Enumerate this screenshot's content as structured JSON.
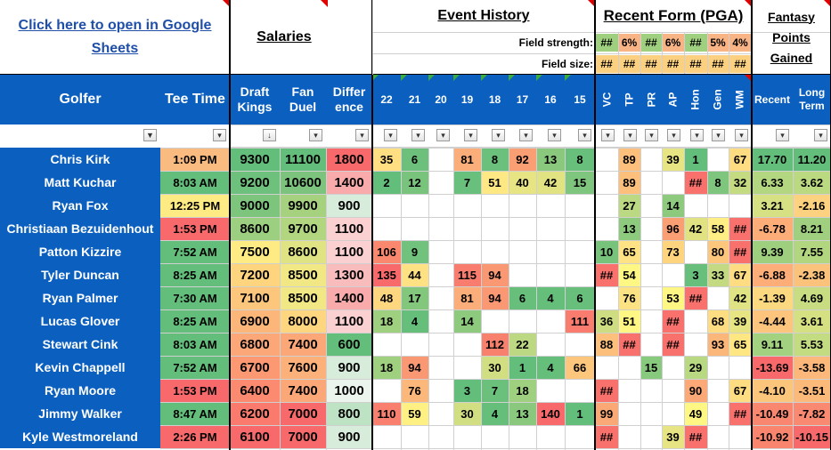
{
  "link": {
    "text": "Click here to open in Google Sheets"
  },
  "sections": {
    "salaries": "Salaries",
    "event_history": "Event History",
    "recent_form": "Recent Form (PGA)",
    "fantasy_points": "Fantasy Points Gained"
  },
  "field_rows": {
    "strength_label": "Field strength:",
    "size_label": "Field size:",
    "strength_values": [
      "##",
      "6%",
      "##",
      "6%",
      "##",
      "5%",
      "4%"
    ],
    "size_values": [
      "##",
      "##",
      "##",
      "##",
      "##",
      "##",
      "##"
    ]
  },
  "columns": {
    "golfer": "Golfer",
    "tee_time": "Tee Time",
    "draftkings": "Draft Kings",
    "fanduel": "Fan Duel",
    "difference": "Differ ence",
    "events": [
      "22",
      "21",
      "20",
      "19",
      "18",
      "17",
      "16",
      "15"
    ],
    "form": [
      "VC",
      "TP",
      "PR",
      "AP",
      "Hon",
      "Gen",
      "WM"
    ],
    "recent": "Recent",
    "long_term": "Long Term"
  },
  "filter_icons": [
    "filter-active-icon",
    "dropdown-icon",
    "sort-descending-icon"
  ],
  "colors": {
    "header_blue": "#0a5fbf",
    "green": "#63be7b",
    "yellow": "#ffeb84",
    "red": "#f8696b",
    "tick_red": "#e00000",
    "tick_green": "#3cab3c"
  },
  "golfers": [
    {
      "name": "Chris Kirk",
      "tee": "1:09 PM",
      "dk": "9300",
      "fd": "11100",
      "diff": "1800",
      "events": [
        "35",
        "6",
        "",
        "81",
        "8",
        "92",
        "13",
        "8"
      ],
      "form": [
        "",
        "89",
        "",
        "39",
        "1",
        "",
        "67"
      ],
      "recent": "17.70",
      "long": "11.20"
    },
    {
      "name": "Matt Kuchar",
      "tee": "8:03 AM",
      "dk": "9200",
      "fd": "10600",
      "diff": "1400",
      "events": [
        "2",
        "12",
        "",
        "7",
        "51",
        "40",
        "42",
        "15"
      ],
      "form": [
        "",
        "89",
        "",
        "",
        "##",
        "8",
        "32"
      ],
      "recent": "6.33",
      "long": "3.62"
    },
    {
      "name": "Ryan Fox",
      "tee": "12:25 PM",
      "dk": "9000",
      "fd": "9900",
      "diff": "900",
      "events": [
        "",
        "",
        "",
        "",
        "",
        "",
        "",
        ""
      ],
      "form": [
        "",
        "27",
        "",
        "14",
        "",
        "",
        ""
      ],
      "recent": "3.21",
      "long": "-2.16"
    },
    {
      "name": "Christiaan Bezuidenhout",
      "tee": "1:53 PM",
      "dk": "8600",
      "fd": "9700",
      "diff": "1100",
      "events": [
        "",
        "",
        "",
        "",
        "",
        "",
        "",
        ""
      ],
      "form": [
        "",
        "13",
        "",
        "96",
        "42",
        "58",
        "##"
      ],
      "recent": "-6.78",
      "long": "8.21"
    },
    {
      "name": "Patton Kizzire",
      "tee": "7:52 AM",
      "dk": "7500",
      "fd": "8600",
      "diff": "1100",
      "events": [
        "106",
        "9",
        "",
        "",
        "",
        "",
        "",
        ""
      ],
      "form": [
        "10",
        "65",
        "",
        "73",
        "",
        "80",
        "##"
      ],
      "recent": "9.39",
      "long": "7.55"
    },
    {
      "name": "Tyler Duncan",
      "tee": "8:25 AM",
      "dk": "7200",
      "fd": "8500",
      "diff": "1300",
      "events": [
        "135",
        "44",
        "",
        "115",
        "94",
        "",
        "",
        ""
      ],
      "form": [
        "##",
        "54",
        "",
        "",
        "3",
        "33",
        "67"
      ],
      "recent": "-6.88",
      "long": "-2.38"
    },
    {
      "name": "Ryan Palmer",
      "tee": "7:30 AM",
      "dk": "7100",
      "fd": "8500",
      "diff": "1400",
      "events": [
        "48",
        "17",
        "",
        "81",
        "94",
        "6",
        "4",
        "6"
      ],
      "form": [
        "",
        "76",
        "",
        "53",
        "##",
        "",
        "42"
      ],
      "recent": "-1.39",
      "long": "4.69"
    },
    {
      "name": "Lucas Glover",
      "tee": "8:25 AM",
      "dk": "6900",
      "fd": "8000",
      "diff": "1100",
      "events": [
        "18",
        "4",
        "",
        "14",
        "",
        "",
        "",
        "111"
      ],
      "form": [
        "36",
        "51",
        "",
        "##",
        "",
        "68",
        "39"
      ],
      "recent": "-4.44",
      "long": "3.61"
    },
    {
      "name": "Stewart Cink",
      "tee": "8:03 AM",
      "dk": "6800",
      "fd": "7400",
      "diff": "600",
      "events": [
        "",
        "",
        "",
        "",
        "112",
        "22",
        "",
        ""
      ],
      "form": [
        "88",
        "##",
        "",
        "##",
        "",
        "93",
        "65"
      ],
      "recent": "9.11",
      "long": "5.53"
    },
    {
      "name": "Kevin Chappell",
      "tee": "7:52 AM",
      "dk": "6700",
      "fd": "7600",
      "diff": "900",
      "events": [
        "18",
        "94",
        "",
        "",
        "30",
        "1",
        "4",
        "66"
      ],
      "form": [
        "",
        "",
        "15",
        "",
        "29",
        "",
        ""
      ],
      "recent": "-13.69",
      "long": "-3.58"
    },
    {
      "name": "Ryan Moore",
      "tee": "1:53 PM",
      "dk": "6400",
      "fd": "7400",
      "diff": "1000",
      "events": [
        "",
        "76",
        "",
        "3",
        "7",
        "18",
        "",
        ""
      ],
      "form": [
        "##",
        "",
        "",
        "",
        "90",
        "",
        "67"
      ],
      "recent": "-4.10",
      "long": "-3.51"
    },
    {
      "name": "Jimmy Walker",
      "tee": "8:47 AM",
      "dk": "6200",
      "fd": "7000",
      "diff": "800",
      "events": [
        "110",
        "59",
        "",
        "30",
        "4",
        "13",
        "140",
        "1"
      ],
      "form": [
        "99",
        "",
        "",
        "",
        "49",
        "",
        "##"
      ],
      "recent": "-10.49",
      "long": "-7.82"
    },
    {
      "name": "Kyle Westmoreland",
      "tee": "2:26 PM",
      "dk": "6100",
      "fd": "7000",
      "diff": "900",
      "events": [
        "",
        "",
        "",
        "",
        "",
        "",
        "",
        ""
      ],
      "form": [
        "##",
        "",
        "",
        "39",
        "##",
        "",
        ""
      ],
      "recent": "-10.92",
      "long": "-10.15"
    }
  ],
  "cell_fills": {
    "tee": [
      "#f9bb7f",
      "#63be7b",
      "#ffeb84",
      "#f8696b",
      "#63be7b",
      "#63be7b",
      "#63be7b",
      "#63be7b",
      "#63be7b",
      "#63be7b",
      "#f8696b",
      "#63be7b",
      "#f8696b"
    ],
    "dk": [
      "#63be7b",
      "#6ec17c",
      "#7dc57d",
      "#9ccf7f",
      "#ffeb84",
      "#fed47f",
      "#fdc67d",
      "#fdb67a",
      "#fca777",
      "#fc9973",
      "#fb8a70",
      "#fa7b6e",
      "#f8696b"
    ],
    "fd": [
      "#63be7b",
      "#7cc47d",
      "#a6d280",
      "#b2d680",
      "#e0e383",
      "#f1e784",
      "#f1e784",
      "#fed680",
      "#fca777",
      "#fcb07a",
      "#fca777",
      "#f8696b",
      "#f8696b"
    ],
    "diff": [
      "#f8696b",
      "#f9abac",
      "#d8ecdb",
      "#fad0d1",
      "#fad0d1",
      "#f9bcbd",
      "#f9abac",
      "#fad0d1",
      "#63be7b",
      "#d8ecdb",
      "#ebf5ee",
      "#bde2c4",
      "#d8ecdb"
    ],
    "events": [
      [
        "#ffdf82",
        "#6dc07c",
        "",
        "#fbae79",
        "#6bc07c",
        "#fa9e74",
        "#89c87d",
        "#67bf7b"
      ],
      [
        "#63be7b",
        "#79c47d",
        "",
        "#69c07c",
        "#fee883",
        "#e7e483",
        "#e1e383",
        "#7ec67d"
      ],
      [
        "",
        "",
        "",
        "",
        "",
        "",
        "",
        ""
      ],
      [
        "",
        "",
        "",
        "",
        "",
        "",
        "",
        ""
      ],
      [
        "#f9886f",
        "#71c27c",
        "",
        "",
        "",
        "",
        "",
        ""
      ],
      [
        "#f8696b",
        "#fde183",
        "",
        "#f97d6e",
        "#fa9874",
        "",
        "",
        ""
      ],
      [
        "#fdd780",
        "#83c77d",
        "",
        "#fbae79",
        "#fa9874",
        "#67bf7b",
        "#65bf7b",
        "#67bf7b"
      ],
      [
        "#9fd07f",
        "#65bf7b",
        "",
        "#8dca7e",
        "",
        "",
        "",
        "#f97c6e"
      ],
      [
        "",
        "",
        "",
        "",
        "#f8816e",
        "#bcd882",
        "",
        ""
      ],
      [
        "#9fd07f",
        "#fa9874",
        "",
        "",
        "#d1df82",
        "#63be7b",
        "#65bf7b",
        "#fcc67d"
      ],
      [
        "",
        "#fcb87a",
        "",
        "#64be7b",
        "#6bc07c",
        "#9fd07f",
        "",
        ""
      ],
      [
        "#f97f6f",
        "#fef083",
        "",
        "#d1df82",
        "#65bf7b",
        "#89c87d",
        "#f8696b",
        "#63be7b"
      ],
      [
        "",
        "",
        "",
        "",
        "",
        "",
        "",
        ""
      ]
    ],
    "form": [
      [
        "",
        "#fcc07c",
        "",
        "#e7e483",
        "#63be7b",
        "",
        "#fedc81"
      ],
      [
        "",
        "#fcc07c",
        "",
        "",
        "#f8716c",
        "#7ec67d",
        "#c5db82"
      ],
      [
        "",
        "#bbd882",
        "",
        "#8dca7e",
        "",
        "",
        ""
      ],
      [
        "",
        "#8dca7e",
        "",
        "#fa9e74",
        "#e1e383",
        "#feee84",
        "#f8716c"
      ],
      [
        "#78c37c",
        "#fee283",
        "",
        "#fed47f",
        "",
        "#fcc67d",
        "#f8716c"
      ],
      [
        "#f8716c",
        "#fef784",
        "",
        "",
        "#67bf7b",
        "#c3da82",
        "#fedc81"
      ],
      [
        "",
        "#fde283",
        "",
        "#fef784",
        "#f8716c",
        "",
        "#e0e383"
      ],
      [
        "#cedd82",
        "#fef784",
        "",
        "#f8716c",
        "",
        "#fedc81",
        "#e7e483"
      ],
      [
        "#fcc07c",
        "#f8716c",
        "",
        "#f8716c",
        "",
        "#fbb67a",
        "#fee783"
      ],
      [
        "",
        "",
        "#87c97d",
        "",
        "#b8d882",
        "",
        ""
      ],
      [
        "#f8716c",
        "",
        "",
        "",
        "#fca977",
        "",
        "#fedc81"
      ],
      [
        "#fba877",
        "",
        "",
        "",
        "#fef784",
        "",
        "#f8716c"
      ],
      [
        "#f8716c",
        "",
        "",
        "#e7e483",
        "#f8716c",
        "",
        ""
      ]
    ],
    "recent": [
      "#63be7b",
      "#b3d780",
      "#d6e183",
      "#fcad78",
      "#9ecf7f",
      "#fcad78",
      "#fcd981",
      "#fcc47c",
      "#a2d17f",
      "#f8696b",
      "#fcc57c",
      "#f9876f",
      "#f9856f"
    ],
    "long": [
      "#63be7b",
      "#bbd981",
      "#fcd280",
      "#a0d07f",
      "#b2d680",
      "#fbc27c",
      "#c8dd82",
      "#d4e082",
      "#c3dc82",
      "#fbb87a",
      "#fbb97a",
      "#f98970",
      "#f8696b"
    ]
  }
}
